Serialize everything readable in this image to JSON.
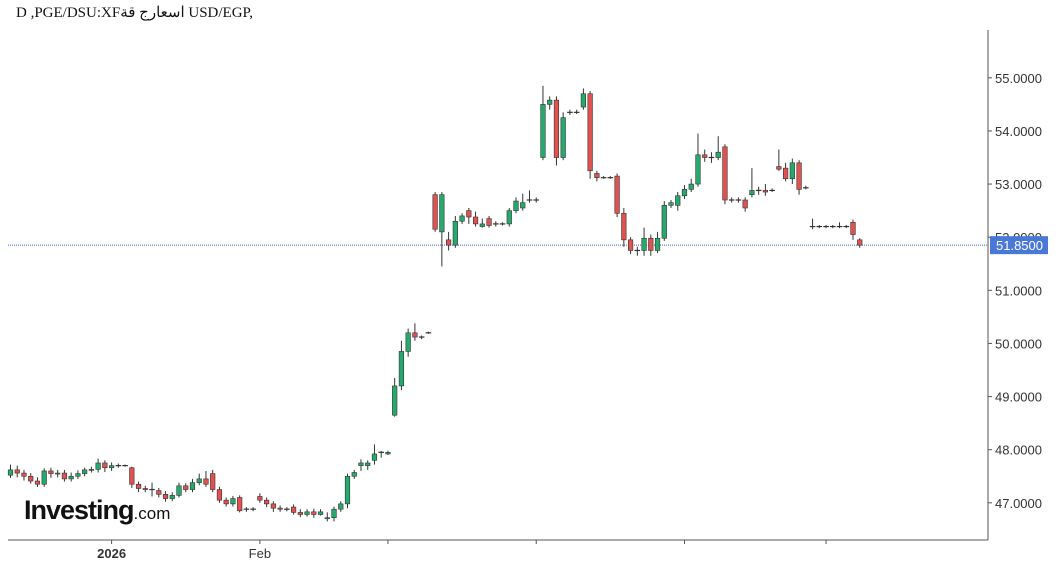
{
  "title": "D ,PGE/DSU:XFاسعارج قة USD/EGP,",
  "logo": {
    "brand": "Investing",
    "suffix": ".com"
  },
  "colors": {
    "up": "#26a96c",
    "down": "#e0524f",
    "price_line": "#3a5fcd",
    "price_tag": "#4a78d6"
  },
  "last_price": "51.8500",
  "chart_data": {
    "type": "candlestick",
    "title": "D ,PGE/DSU:XFاسعارج قة USD/EGP,",
    "ylim": [
      46.3,
      55.9
    ],
    "y_ticks": [
      "47.0000",
      "48.0000",
      "49.0000",
      "50.0000",
      "51.0000",
      "52.0000",
      "53.0000",
      "54.0000",
      "55.0000"
    ],
    "x_tick_labels": [
      {
        "label": "2026",
        "bold": true,
        "index": 15
      },
      {
        "label": "Feb",
        "bold": false,
        "index": 37
      }
    ],
    "x_minor_tick_indices": [
      56,
      78,
      100,
      121
    ],
    "last_price": 51.85,
    "grid": false,
    "candles": [
      [
        47.52,
        47.62,
        47.72,
        47.47
      ],
      [
        47.62,
        47.56,
        47.7,
        47.48
      ],
      [
        47.56,
        47.5,
        47.62,
        47.42
      ],
      [
        47.5,
        47.41,
        47.56,
        47.36
      ],
      [
        47.41,
        47.35,
        47.48,
        47.3
      ],
      [
        47.35,
        47.6,
        47.65,
        47.3
      ],
      [
        47.6,
        47.55,
        47.66,
        47.47
      ],
      [
        47.55,
        47.56,
        47.62,
        47.48
      ],
      [
        47.56,
        47.45,
        47.62,
        47.4
      ],
      [
        47.45,
        47.5,
        47.57,
        47.4
      ],
      [
        47.5,
        47.55,
        47.61,
        47.45
      ],
      [
        47.55,
        47.62,
        47.66,
        47.5
      ],
      [
        47.62,
        47.63,
        47.68,
        47.57
      ],
      [
        47.63,
        47.75,
        47.83,
        47.57
      ],
      [
        47.75,
        47.66,
        47.8,
        47.58
      ],
      [
        47.66,
        47.7,
        47.76,
        47.6
      ],
      [
        47.7,
        47.7,
        47.74,
        47.66
      ],
      [
        47.7,
        47.7,
        47.72,
        47.68
      ],
      [
        47.66,
        47.35,
        47.68,
        47.28
      ],
      [
        47.35,
        47.27,
        47.4,
        47.2
      ],
      [
        47.27,
        47.25,
        47.32,
        47.2
      ],
      [
        47.25,
        47.25,
        47.38,
        47.12
      ],
      [
        47.23,
        47.16,
        47.28,
        47.1
      ],
      [
        47.16,
        47.08,
        47.22,
        47.02
      ],
      [
        47.08,
        47.14,
        47.2,
        47.03
      ],
      [
        47.14,
        47.32,
        47.38,
        47.1
      ],
      [
        47.32,
        47.25,
        47.37,
        47.2
      ],
      [
        47.25,
        47.38,
        47.45,
        47.2
      ],
      [
        47.38,
        47.45,
        47.55,
        47.33
      ],
      [
        47.45,
        47.35,
        47.6,
        47.3
      ],
      [
        47.55,
        47.25,
        47.62,
        47.2
      ],
      [
        47.25,
        47.05,
        47.3,
        47.0
      ],
      [
        47.05,
        46.98,
        47.1,
        46.93
      ],
      [
        46.98,
        47.08,
        47.13,
        46.93
      ],
      [
        47.1,
        46.85,
        47.14,
        46.82
      ],
      [
        46.88,
        46.88,
        46.92,
        46.83
      ],
      [
        46.88,
        46.88,
        46.92,
        46.84
      ],
      [
        47.12,
        47.05,
        47.18,
        47.0
      ],
      [
        47.05,
        46.98,
        47.1,
        46.92
      ],
      [
        46.98,
        46.9,
        47.03,
        46.83
      ],
      [
        46.9,
        46.88,
        46.95,
        46.83
      ],
      [
        46.88,
        46.88,
        46.92,
        46.84
      ],
      [
        46.92,
        46.82,
        46.97,
        46.78
      ],
      [
        46.82,
        46.78,
        46.88,
        46.73
      ],
      [
        46.78,
        46.83,
        46.88,
        46.74
      ],
      [
        46.83,
        46.78,
        46.89,
        46.72
      ],
      [
        46.78,
        46.83,
        46.88,
        46.76
      ],
      [
        46.7,
        46.72,
        46.82,
        46.65
      ],
      [
        46.72,
        46.88,
        46.93,
        46.65
      ],
      [
        46.88,
        46.98,
        47.03,
        46.83
      ],
      [
        46.98,
        47.5,
        47.55,
        46.9
      ],
      [
        47.5,
        47.57,
        47.62,
        47.45
      ],
      [
        47.7,
        47.75,
        47.82,
        47.6
      ],
      [
        47.7,
        47.75,
        47.8,
        47.62
      ],
      [
        47.8,
        47.92,
        48.1,
        47.72
      ],
      [
        47.95,
        47.95,
        47.98,
        47.85
      ],
      [
        47.92,
        47.95,
        47.98,
        47.9
      ],
      [
        48.65,
        49.2,
        49.35,
        48.62
      ],
      [
        49.2,
        49.85,
        50.05,
        49.12
      ],
      [
        49.85,
        50.2,
        50.28,
        49.75
      ],
      [
        50.2,
        50.12,
        50.38,
        50.05
      ],
      [
        50.12,
        50.12,
        50.15,
        50.08
      ],
      [
        50.2,
        50.2,
        50.22,
        50.18
      ],
      [
        52.8,
        52.15,
        52.85,
        52.1
      ],
      [
        52.1,
        52.8,
        52.85,
        51.45
      ],
      [
        51.95,
        51.85,
        52.1,
        51.75
      ],
      [
        51.85,
        52.3,
        52.4,
        51.8
      ],
      [
        52.3,
        52.4,
        52.45,
        52.25
      ],
      [
        52.5,
        52.38,
        52.55,
        52.25
      ],
      [
        52.38,
        52.25,
        52.48,
        52.2
      ],
      [
        52.2,
        52.25,
        52.35,
        52.18
      ],
      [
        52.35,
        52.22,
        52.4,
        52.18
      ],
      [
        52.25,
        52.25,
        52.3,
        52.2
      ],
      [
        52.25,
        52.25,
        52.28,
        52.22
      ],
      [
        52.25,
        52.5,
        52.55,
        52.2
      ],
      [
        52.5,
        52.68,
        52.75,
        52.45
      ],
      [
        52.55,
        52.65,
        52.82,
        52.5
      ],
      [
        52.7,
        52.7,
        52.88,
        52.65
      ],
      [
        52.7,
        52.7,
        52.75,
        52.65
      ],
      [
        53.5,
        54.5,
        54.85,
        53.45
      ],
      [
        54.5,
        54.58,
        54.65,
        54.4
      ],
      [
        54.58,
        53.5,
        54.65,
        53.35
      ],
      [
        53.5,
        54.25,
        54.35,
        53.45
      ],
      [
        54.35,
        54.35,
        54.4,
        54.3
      ],
      [
        54.35,
        54.35,
        54.4,
        54.32
      ],
      [
        54.45,
        54.7,
        54.8,
        54.4
      ],
      [
        54.7,
        53.25,
        54.75,
        53.1
      ],
      [
        53.2,
        53.12,
        53.25,
        53.05
      ],
      [
        53.12,
        53.12,
        53.15,
        53.1
      ],
      [
        53.12,
        53.12,
        53.15,
        53.1
      ],
      [
        53.15,
        52.45,
        53.2,
        52.38
      ],
      [
        52.45,
        51.95,
        52.55,
        51.82
      ],
      [
        51.95,
        51.75,
        52.0,
        51.68
      ],
      [
        51.75,
        51.75,
        51.82,
        51.65
      ],
      [
        51.75,
        51.98,
        52.18,
        51.65
      ],
      [
        51.98,
        51.75,
        52.05,
        51.65
      ],
      [
        51.75,
        51.98,
        52.1,
        51.7
      ],
      [
        51.98,
        52.6,
        52.68,
        51.93
      ],
      [
        52.6,
        52.65,
        52.7,
        52.55
      ],
      [
        52.6,
        52.78,
        52.85,
        52.5
      ],
      [
        52.78,
        52.9,
        52.98,
        52.72
      ],
      [
        52.9,
        53.0,
        53.1,
        52.85
      ],
      [
        53.0,
        53.55,
        53.95,
        52.95
      ],
      [
        53.55,
        53.5,
        53.65,
        53.42
      ],
      [
        53.5,
        53.5,
        53.6,
        53.4
      ],
      [
        53.5,
        53.6,
        53.9,
        53.45
      ],
      [
        53.7,
        52.7,
        53.75,
        52.62
      ],
      [
        52.7,
        52.7,
        52.75,
        52.65
      ],
      [
        52.7,
        52.7,
        52.75,
        52.65
      ],
      [
        52.7,
        52.55,
        52.75,
        52.48
      ],
      [
        52.8,
        52.88,
        53.3,
        52.75
      ],
      [
        52.88,
        52.88,
        52.95,
        52.8
      ],
      [
        52.88,
        52.85,
        53.0,
        52.78
      ],
      [
        52.88,
        52.88,
        52.92,
        52.85
      ],
      [
        53.33,
        53.28,
        53.65,
        53.25
      ],
      [
        53.3,
        53.1,
        53.4,
        53.05
      ],
      [
        53.1,
        53.4,
        53.48,
        53.0
      ],
      [
        53.4,
        52.9,
        53.45,
        52.8
      ],
      [
        52.93,
        52.93,
        52.97,
        52.9
      ],
      [
        52.2,
        52.2,
        52.35,
        52.15
      ],
      [
        52.2,
        52.2,
        52.23,
        52.17
      ],
      [
        52.2,
        52.2,
        52.23,
        52.17
      ],
      [
        52.2,
        52.2,
        52.23,
        52.17
      ],
      [
        52.2,
        52.2,
        52.28,
        52.17
      ],
      [
        52.2,
        52.2,
        52.23,
        52.17
      ],
      [
        52.28,
        52.05,
        52.33,
        51.95
      ],
      [
        51.95,
        51.85,
        51.98,
        51.8
      ]
    ]
  }
}
